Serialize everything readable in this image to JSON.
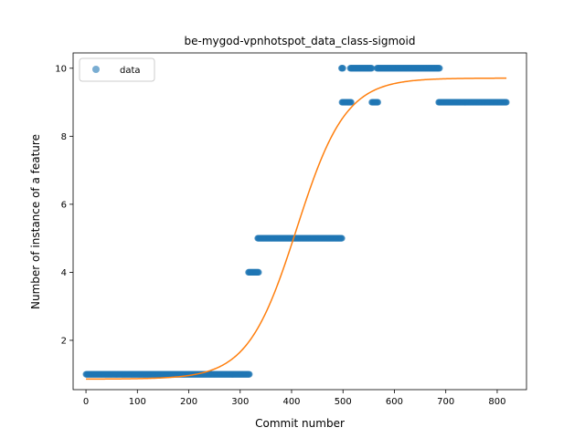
{
  "chart_data": {
    "type": "scatter",
    "title": "be-mygod-vpnhotspot_data_class-sigmoid",
    "xlabel": "Commit number",
    "ylabel": "Number of instance of a feature",
    "xlim": [
      -25,
      857
    ],
    "ylim": [
      0.55,
      10.45
    ],
    "xticks": [
      0,
      100,
      200,
      300,
      400,
      500,
      600,
      700,
      800
    ],
    "yticks": [
      2,
      4,
      6,
      8,
      10
    ],
    "grid": false,
    "legend": {
      "placement": "top-left",
      "entries": [
        "data"
      ]
    },
    "colors": {
      "data": "#1f77b4",
      "fit": "#ff7f0e"
    },
    "series": [
      {
        "name": "data",
        "kind": "points",
        "segments": [
          {
            "x_start": 0,
            "x_end": 318,
            "y": 1
          },
          {
            "x_start": 316,
            "x_end": 336,
            "y": 4
          },
          {
            "x_start": 334,
            "x_end": 498,
            "y": 5
          },
          {
            "x_start": 497,
            "x_end": 500,
            "y": 10
          },
          {
            "x_start": 498,
            "x_end": 516,
            "y": 9
          },
          {
            "x_start": 514,
            "x_end": 556,
            "y": 10
          },
          {
            "x_start": 556,
            "x_end": 568,
            "y": 9
          },
          {
            "x_start": 566,
            "x_end": 688,
            "y": 10
          },
          {
            "x_start": 686,
            "x_end": 818,
            "y": 9
          }
        ]
      },
      {
        "kind": "sigmoid-fit",
        "params": {
          "L": 8.85,
          "x0": 410,
          "k": 0.021,
          "b": 0.86
        },
        "x_range": [
          0,
          818
        ]
      }
    ]
  }
}
